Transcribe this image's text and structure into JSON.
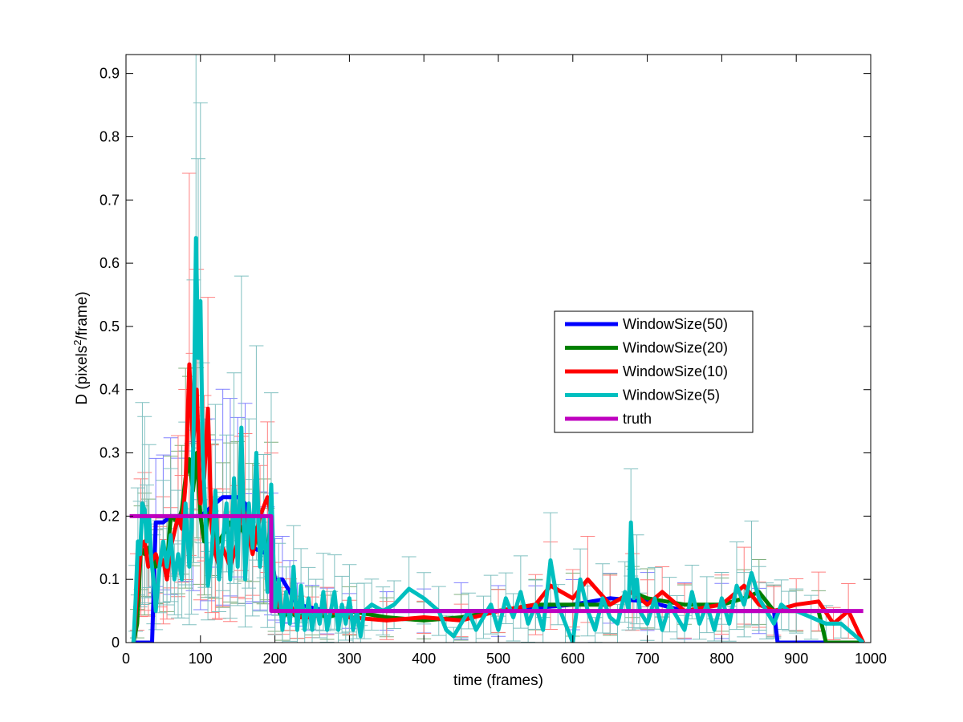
{
  "chart_data": {
    "type": "line",
    "xlabel": "time (frames)",
    "ylabel_main": "D (pixels",
    "ylabel_sup": "2",
    "ylabel_tail": "/frame)",
    "xlim": [
      0,
      1000
    ],
    "ylim": [
      0,
      0.93
    ],
    "xticks": [
      0,
      100,
      200,
      300,
      400,
      500,
      600,
      700,
      800,
      900,
      1000
    ],
    "yticks": [
      0,
      0.1,
      0.2,
      0.3,
      0.4,
      0.5,
      0.6,
      0.7,
      0.8,
      0.9
    ],
    "grid": false,
    "legend_position": "center-right",
    "series": [
      {
        "name": "WindowSize(50)",
        "color": "#0000ff",
        "error_color": "#8080ff",
        "x": [
          10,
          20,
          30,
          35,
          40,
          50,
          60,
          70,
          80,
          90,
          100,
          110,
          120,
          130,
          140,
          150,
          160,
          170,
          180,
          190,
          195,
          200,
          210,
          220,
          230,
          250,
          270,
          300,
          350,
          400,
          450,
          500,
          550,
          600,
          650,
          700,
          750,
          800,
          850,
          870,
          875,
          880,
          900,
          920,
          940,
          960,
          990
        ],
        "y": [
          0,
          0,
          0,
          0,
          0.19,
          0.19,
          0.2,
          0.2,
          0.2,
          0.2,
          0.2,
          0.21,
          0.22,
          0.23,
          0.23,
          0.23,
          0.22,
          0.15,
          0.145,
          0.14,
          0.14,
          0.1,
          0.1,
          0.08,
          0.06,
          0.055,
          0.05,
          0.05,
          0.05,
          0.05,
          0.05,
          0.05,
          0.055,
          0.06,
          0.07,
          0.065,
          0.05,
          0.05,
          0.05,
          0.05,
          0,
          0,
          0,
          0,
          0,
          0,
          0
        ]
      },
      {
        "name": "WindowSize(20)",
        "color": "#008000",
        "error_color": "#80b080",
        "x": [
          10,
          15,
          20,
          25,
          30,
          40,
          50,
          55,
          60,
          70,
          75,
          80,
          85,
          90,
          95,
          100,
          105,
          110,
          115,
          120,
          130,
          140,
          150,
          160,
          170,
          180,
          185,
          190,
          195,
          200,
          210,
          220,
          230,
          250,
          270,
          300,
          350,
          400,
          450,
          500,
          550,
          600,
          650,
          680,
          700,
          750,
          800,
          830,
          850,
          870,
          900,
          930,
          940,
          960,
          990
        ],
        "y": [
          0,
          0.03,
          0.15,
          0.14,
          0.15,
          0.12,
          0.13,
          0.12,
          0.2,
          0.19,
          0.21,
          0.26,
          0.29,
          0.24,
          0.3,
          0.2,
          0.16,
          0.2,
          0.21,
          0.15,
          0.17,
          0.19,
          0.19,
          0.17,
          0.19,
          0.15,
          0.16,
          0.14,
          0.2,
          0.06,
          0.04,
          0.05,
          0.04,
          0.05,
          0.04,
          0.05,
          0.04,
          0.035,
          0.04,
          0.05,
          0.06,
          0.06,
          0.06,
          0.08,
          0.07,
          0.06,
          0.06,
          0.07,
          0.08,
          0.05,
          0.05,
          0.05,
          0,
          0,
          0
        ]
      },
      {
        "name": "WindowSize(10)",
        "color": "#ff0000",
        "error_color": "#ff8080",
        "x": [
          10,
          15,
          20,
          25,
          30,
          40,
          45,
          50,
          55,
          60,
          70,
          75,
          80,
          85,
          90,
          95,
          100,
          105,
          110,
          115,
          120,
          125,
          130,
          140,
          150,
          155,
          160,
          170,
          180,
          190,
          195,
          200,
          210,
          220,
          230,
          250,
          270,
          300,
          350,
          400,
          450,
          500,
          550,
          570,
          600,
          620,
          650,
          680,
          700,
          720,
          750,
          800,
          830,
          850,
          870,
          900,
          930,
          950,
          970,
          990
        ],
        "y": [
          0,
          0.08,
          0.15,
          0.16,
          0.12,
          0.14,
          0.12,
          0.13,
          0.1,
          0.15,
          0.2,
          0.18,
          0.25,
          0.44,
          0.31,
          0.4,
          0.22,
          0.26,
          0.37,
          0.18,
          0.14,
          0.12,
          0.15,
          0.12,
          0.16,
          0.22,
          0.2,
          0.14,
          0.2,
          0.23,
          0.2,
          0.07,
          0.05,
          0.06,
          0.04,
          0.04,
          0.05,
          0.04,
          0.035,
          0.04,
          0.035,
          0.05,
          0.06,
          0.09,
          0.07,
          0.1,
          0.06,
          0.08,
          0.06,
          0.08,
          0.05,
          0.06,
          0.09,
          0.06,
          0.05,
          0.06,
          0.065,
          0.03,
          0.05,
          0
        ]
      },
      {
        "name": "WindowSize(5)",
        "color": "#00bfbf",
        "error_color": "#80c0c0",
        "x": [
          10,
          13,
          16,
          19,
          22,
          25,
          28,
          31,
          34,
          37,
          40,
          45,
          50,
          55,
          60,
          65,
          70,
          75,
          80,
          85,
          88,
          91,
          94,
          97,
          100,
          103,
          106,
          110,
          115,
          120,
          125,
          130,
          135,
          140,
          145,
          150,
          155,
          160,
          165,
          170,
          175,
          180,
          185,
          190,
          195,
          200,
          205,
          210,
          215,
          220,
          225,
          230,
          235,
          240,
          245,
          250,
          255,
          260,
          265,
          270,
          275,
          280,
          285,
          290,
          295,
          300,
          305,
          310,
          315,
          320,
          330,
          345,
          360,
          380,
          400,
          420,
          430,
          440,
          450,
          460,
          470,
          480,
          490,
          500,
          510,
          520,
          530,
          540,
          550,
          560,
          570,
          580,
          590,
          600,
          610,
          620,
          630,
          640,
          650,
          660,
          670,
          675,
          678,
          682,
          686,
          690,
          700,
          710,
          720,
          730,
          740,
          750,
          760,
          770,
          780,
          790,
          800,
          810,
          820,
          830,
          840,
          850,
          860,
          870,
          880,
          890,
          900,
          920,
          940,
          960,
          990
        ],
        "y": [
          0,
          0.07,
          0.16,
          0.14,
          0.22,
          0.21,
          0.16,
          0.2,
          0.13,
          0.1,
          0.05,
          0.12,
          0.16,
          0.12,
          0.17,
          0.1,
          0.14,
          0.1,
          0.22,
          0.12,
          0.18,
          0.35,
          0.64,
          0.45,
          0.54,
          0.3,
          0.22,
          0.09,
          0.14,
          0.24,
          0.1,
          0.16,
          0.22,
          0.1,
          0.26,
          0.12,
          0.34,
          0.1,
          0.22,
          0.15,
          0.3,
          0.12,
          0.2,
          0.08,
          0.25,
          0.05,
          0.1,
          0.02,
          0.08,
          0.03,
          0.12,
          0.02,
          0.09,
          0.02,
          0.07,
          0.02,
          0.06,
          0.03,
          0.08,
          0.02,
          0.05,
          0.08,
          0.02,
          0.06,
          0.03,
          0.07,
          0.02,
          0.05,
          0.01,
          0.05,
          0.06,
          0.05,
          0.06,
          0.085,
          0.07,
          0.05,
          0.02,
          0.01,
          0.03,
          0.05,
          0.02,
          0.04,
          0.06,
          0.02,
          0.07,
          0.04,
          0.08,
          0.03,
          0.06,
          0.02,
          0.13,
          0.06,
          0.03,
          0,
          0.1,
          0.05,
          0.02,
          0.07,
          0.04,
          0.03,
          0.08,
          0.05,
          0.19,
          0.07,
          0.1,
          0.05,
          0.03,
          0.07,
          0.02,
          0.06,
          0.04,
          0.02,
          0.08,
          0.03,
          0.06,
          0.02,
          0.07,
          0.03,
          0.09,
          0.06,
          0.11,
          0.07,
          0.05,
          0.03,
          0.06,
          0.05,
          0.05,
          0.04,
          0.03,
          0.03,
          0
        ]
      },
      {
        "name": "truth",
        "color": "#bf00bf",
        "x": [
          5,
          195,
          195,
          990
        ],
        "y": [
          0.2,
          0.2,
          0.05,
          0.05
        ]
      }
    ]
  }
}
